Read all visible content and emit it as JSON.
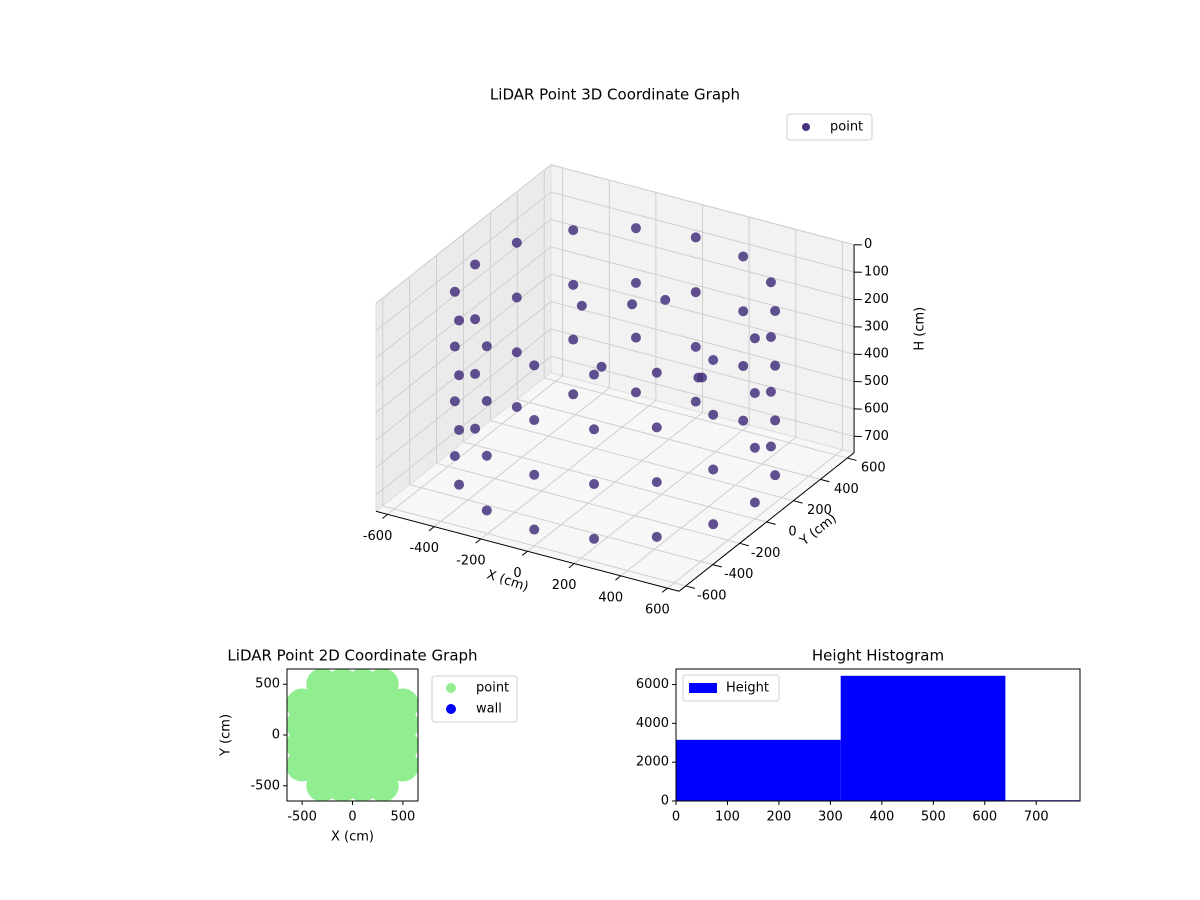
{
  "chart_data": [
    {
      "type": "scatter3d",
      "title": "LiDAR Point 3D Coordinate Graph",
      "xlabel": "X (cm)",
      "ylabel": "Y (cm)",
      "zlabel": "H (cm)",
      "xlim": [
        -650,
        650
      ],
      "ylim": [
        -650,
        650
      ],
      "zlim": [
        0,
        760
      ],
      "z_inverted": true,
      "xticks": [
        -600,
        -400,
        -200,
        0,
        200,
        400,
        600
      ],
      "yticks": [
        -600,
        -400,
        -200,
        0,
        200,
        400,
        600
      ],
      "zticks": [
        0,
        100,
        200,
        300,
        400,
        500,
        600,
        700
      ],
      "legend": "upper right",
      "series": [
        {
          "name": "point",
          "color": "#46327e",
          "x": [
            600,
            554,
            424,
            230,
            0,
            -230,
            -424,
            -554,
            -600,
            -554,
            -424,
            -230,
            0,
            230,
            424,
            554,
            600,
            554,
            424,
            230,
            0,
            -230,
            -424,
            -554,
            -600,
            -554,
            -424,
            -230,
            0,
            230,
            424,
            554,
            600,
            554,
            424,
            230,
            0,
            -230,
            -424,
            -554,
            -600,
            -554,
            -424,
            -230,
            0,
            230,
            424,
            554,
            600,
            554,
            424,
            230,
            0,
            -230,
            -424,
            -554,
            -600,
            -554,
            -424,
            -230,
            0,
            230,
            424,
            554,
            100,
            -100,
            300,
            -200,
            0,
            200
          ],
          "y": [
            0,
            230,
            424,
            554,
            600,
            554,
            424,
            230,
            0,
            -230,
            -424,
            -554,
            -600,
            -554,
            -424,
            -230,
            0,
            230,
            424,
            554,
            600,
            554,
            424,
            230,
            0,
            -230,
            -424,
            -554,
            -600,
            -554,
            -424,
            -230,
            0,
            230,
            424,
            554,
            600,
            554,
            424,
            230,
            0,
            -230,
            -424,
            -554,
            -600,
            -554,
            -424,
            -230,
            0,
            230,
            424,
            554,
            600,
            554,
            424,
            230,
            0,
            -230,
            -424,
            -554,
            -600,
            -554,
            -424,
            -230,
            200,
            300,
            100,
            100,
            -100,
            300
          ],
          "z": [
            100,
            100,
            100,
            100,
            100,
            100,
            100,
            100,
            100,
            100,
            100,
            100,
            100,
            100,
            100,
            100,
            300,
            300,
            300,
            300,
            300,
            300,
            300,
            300,
            300,
            300,
            300,
            300,
            300,
            300,
            300,
            300,
            500,
            500,
            500,
            500,
            500,
            500,
            500,
            500,
            500,
            500,
            500,
            500,
            500,
            500,
            500,
            500,
            700,
            700,
            700,
            700,
            700,
            700,
            700,
            700,
            700,
            700,
            700,
            700,
            700,
            700,
            700,
            700,
            150,
            250,
            350,
            200,
            300,
            450
          ]
        }
      ]
    },
    {
      "type": "scatter",
      "title": "LiDAR Point 2D Coordinate Graph",
      "xlabel": "X (cm)",
      "ylabel": "Y (cm)",
      "xlim": [
        -650,
        650
      ],
      "ylim": [
        -650,
        650
      ],
      "xticks": [
        -500,
        0,
        500
      ],
      "yticks": [
        -500,
        0,
        500
      ],
      "legend": "outside upper right",
      "series": [
        {
          "name": "point",
          "color": "#90ee90",
          "x": [
            -500,
            -500,
            -500,
            -500,
            -300,
            -300,
            -300,
            -300,
            -300,
            -300,
            -100,
            -100,
            -100,
            -100,
            -100,
            -100,
            100,
            100,
            100,
            100,
            100,
            100,
            300,
            300,
            300,
            300,
            300,
            300,
            500,
            500,
            500,
            500
          ],
          "y": [
            -300,
            -100,
            100,
            300,
            -500,
            -300,
            -100,
            100,
            300,
            500,
            -500,
            -300,
            -100,
            100,
            300,
            500,
            -500,
            -300,
            -100,
            100,
            300,
            500,
            -500,
            -300,
            -100,
            100,
            300,
            500,
            -300,
            -100,
            100,
            300
          ]
        },
        {
          "name": "wall",
          "color": "#0000ff",
          "x": [],
          "y": []
        }
      ]
    },
    {
      "type": "histogram",
      "title": "Height Histogram",
      "bins": [
        0,
        320,
        640,
        785
      ],
      "values": [
        3150,
        6450,
        40
      ],
      "xlim": [
        0,
        785
      ],
      "ylim": [
        0,
        6800
      ],
      "xticks": [
        0,
        100,
        200,
        300,
        400,
        500,
        600,
        700
      ],
      "yticks": [
        0,
        2000,
        4000,
        6000
      ],
      "legend": "upper left",
      "series_name": "Height",
      "color": "#0000ff"
    }
  ]
}
